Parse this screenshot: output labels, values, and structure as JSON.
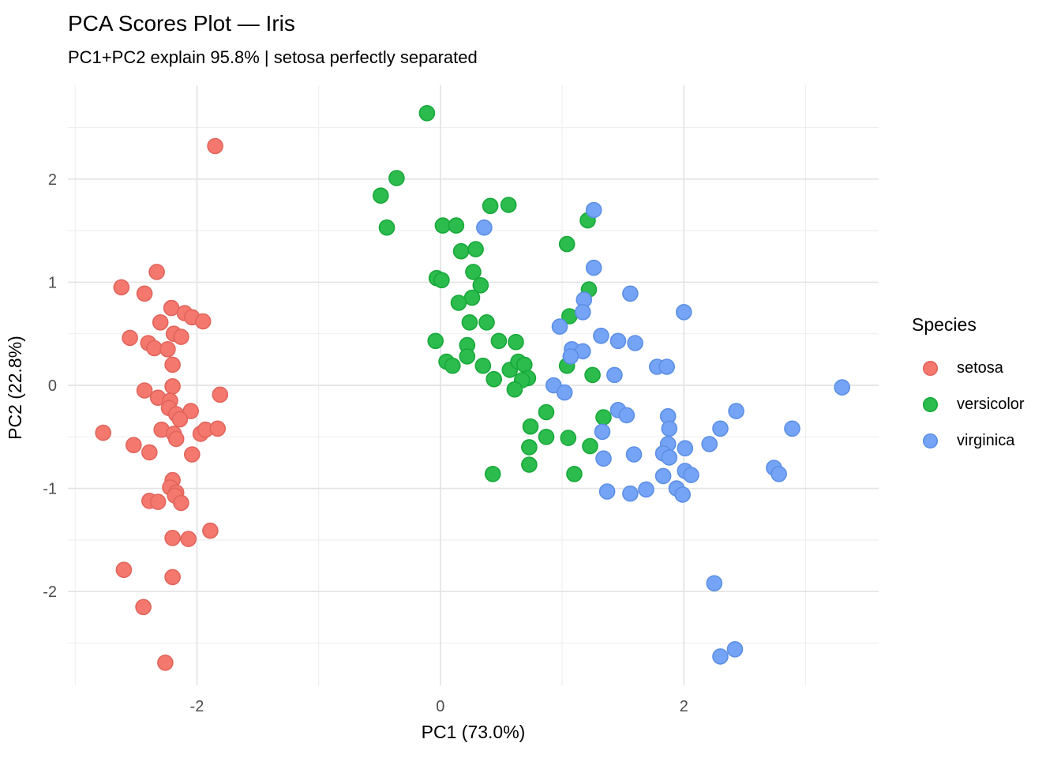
{
  "header": {
    "title": "PCA Scores Plot — Iris",
    "subtitle": "PC1+PC2 explain 95.8% | setosa perfectly separated"
  },
  "chart_data": {
    "type": "scatter",
    "title": "PCA Scores Plot — Iris",
    "subtitle": "PC1+PC2 explain 95.8% | setosa perfectly separated",
    "xlabel": "PC1 (73.0%)",
    "ylabel": "PC2 (22.8%)",
    "xlim": [
      -3.06,
      3.6
    ],
    "ylim": [
      -2.91,
      2.91
    ],
    "x_ticks": [
      -2,
      0,
      2
    ],
    "y_ticks": [
      -2,
      -1,
      0,
      1,
      2
    ],
    "x_minor_ticks": [
      -3,
      -1,
      1,
      3
    ],
    "y_minor_ticks": [
      -2.5,
      -1.5,
      -0.5,
      0.5,
      1.5,
      2.5
    ],
    "grid": true,
    "legend_position": "right",
    "legend_title": "Species",
    "point_radius": 9.5,
    "colors": {
      "major_grid": "#e3e3e3",
      "minor_grid": "#efefef",
      "tick_label": "#4d4d4d"
    },
    "series": [
      {
        "name": "setosa",
        "color": "#F4786E",
        "stroke": "#E2655C",
        "points": [
          [
            -1.85,
            2.32
          ],
          [
            -2.33,
            1.1
          ],
          [
            -2.62,
            0.95
          ],
          [
            -2.43,
            0.89
          ],
          [
            -2.21,
            0.75
          ],
          [
            -2.1,
            0.7
          ],
          [
            -2.04,
            0.66
          ],
          [
            -1.95,
            0.62
          ],
          [
            -2.3,
            0.61
          ],
          [
            -2.55,
            0.46
          ],
          [
            -2.19,
            0.5
          ],
          [
            -2.13,
            0.47
          ],
          [
            -2.4,
            0.41
          ],
          [
            -2.35,
            0.36
          ],
          [
            -2.24,
            0.35
          ],
          [
            -2.2,
            0.2
          ],
          [
            -2.43,
            -0.05
          ],
          [
            -2.2,
            -0.01
          ],
          [
            -2.32,
            -0.12
          ],
          [
            -2.22,
            -0.15
          ],
          [
            -1.81,
            -0.09
          ],
          [
            -2.23,
            -0.22
          ],
          [
            -2.05,
            -0.25
          ],
          [
            -2.17,
            -0.28
          ],
          [
            -2.14,
            -0.33
          ],
          [
            -2.77,
            -0.46
          ],
          [
            -2.29,
            -0.43
          ],
          [
            -2.19,
            -0.47
          ],
          [
            -1.97,
            -0.47
          ],
          [
            -1.93,
            -0.43
          ],
          [
            -1.83,
            -0.42
          ],
          [
            -2.17,
            -0.52
          ],
          [
            -2.52,
            -0.58
          ],
          [
            -2.39,
            -0.65
          ],
          [
            -2.04,
            -0.67
          ],
          [
            -2.2,
            -0.92
          ],
          [
            -2.22,
            -0.99
          ],
          [
            -2.17,
            -1.04
          ],
          [
            -2.39,
            -1.12
          ],
          [
            -2.32,
            -1.13
          ],
          [
            -2.18,
            -1.07
          ],
          [
            -2.13,
            -1.14
          ],
          [
            -2.2,
            -1.48
          ],
          [
            -2.07,
            -1.49
          ],
          [
            -1.89,
            -1.41
          ],
          [
            -2.6,
            -1.79
          ],
          [
            -2.2,
            -1.86
          ],
          [
            -2.44,
            -2.15
          ],
          [
            -2.26,
            -2.69
          ]
        ]
      },
      {
        "name": "versicolor",
        "color": "#2BBC4D",
        "stroke": "#18A83A",
        "points": [
          [
            -0.11,
            2.64
          ],
          [
            -0.36,
            2.01
          ],
          [
            -0.49,
            1.84
          ],
          [
            -0.44,
            1.53
          ],
          [
            0.02,
            1.55
          ],
          [
            0.13,
            1.55
          ],
          [
            0.41,
            1.74
          ],
          [
            0.56,
            1.75
          ],
          [
            0.17,
            1.3
          ],
          [
            0.29,
            1.32
          ],
          [
            0.27,
            1.1
          ],
          [
            -0.03,
            1.04
          ],
          [
            0.01,
            1.02
          ],
          [
            0.33,
            0.97
          ],
          [
            0.26,
            0.85
          ],
          [
            0.15,
            0.8
          ],
          [
            1.21,
            1.6
          ],
          [
            1.04,
            1.37
          ],
          [
            1.22,
            0.93
          ],
          [
            1.06,
            0.67
          ],
          [
            -0.04,
            0.43
          ],
          [
            0.24,
            0.61
          ],
          [
            0.38,
            0.61
          ],
          [
            0.22,
            0.39
          ],
          [
            0.22,
            0.28
          ],
          [
            0.05,
            0.23
          ],
          [
            0.1,
            0.19
          ],
          [
            0.35,
            0.19
          ],
          [
            0.48,
            0.43
          ],
          [
            0.62,
            0.42
          ],
          [
            0.44,
            0.06
          ],
          [
            0.57,
            0.15
          ],
          [
            0.64,
            0.23
          ],
          [
            0.69,
            0.2
          ],
          [
            0.72,
            0.07
          ],
          [
            0.67,
            0.05
          ],
          [
            0.61,
            -0.04
          ],
          [
            1.04,
            0.19
          ],
          [
            1.25,
            0.1
          ],
          [
            0.87,
            -0.26
          ],
          [
            0.74,
            -0.4
          ],
          [
            0.87,
            -0.5
          ],
          [
            1.05,
            -0.51
          ],
          [
            0.73,
            -0.6
          ],
          [
            1.23,
            -0.59
          ],
          [
            0.73,
            -0.77
          ],
          [
            0.43,
            -0.86
          ],
          [
            1.1,
            -0.86
          ],
          [
            1.34,
            -0.31
          ]
        ]
      },
      {
        "name": "virginica",
        "color": "#75A4F6",
        "stroke": "#5C8FE5",
        "points": [
          [
            0.36,
            1.53
          ],
          [
            1.26,
            1.7
          ],
          [
            1.26,
            1.14
          ],
          [
            1.56,
            0.89
          ],
          [
            1.18,
            0.83
          ],
          [
            1.17,
            0.71
          ],
          [
            0.98,
            0.57
          ],
          [
            1.32,
            0.48
          ],
          [
            1.46,
            0.43
          ],
          [
            1.08,
            0.35
          ],
          [
            1.17,
            0.33
          ],
          [
            1.07,
            0.28
          ],
          [
            1.43,
            0.1
          ],
          [
            0.93,
            0.0
          ],
          [
            1.02,
            -0.07
          ],
          [
            1.46,
            -0.24
          ],
          [
            1.53,
            -0.29
          ],
          [
            1.33,
            -0.45
          ],
          [
            1.34,
            -0.71
          ],
          [
            1.37,
            -1.03
          ],
          [
            2.0,
            0.71
          ],
          [
            1.6,
            0.41
          ],
          [
            1.78,
            0.18
          ],
          [
            1.86,
            0.18
          ],
          [
            3.3,
            -0.02
          ],
          [
            1.87,
            -0.3
          ],
          [
            1.88,
            -0.42
          ],
          [
            2.43,
            -0.25
          ],
          [
            2.3,
            -0.42
          ],
          [
            2.89,
            -0.42
          ],
          [
            2.21,
            -0.57
          ],
          [
            1.87,
            -0.57
          ],
          [
            2.01,
            -0.61
          ],
          [
            1.59,
            -0.67
          ],
          [
            1.83,
            -0.66
          ],
          [
            1.88,
            -0.7
          ],
          [
            1.83,
            -0.88
          ],
          [
            2.01,
            -0.83
          ],
          [
            2.06,
            -0.87
          ],
          [
            2.74,
            -0.8
          ],
          [
            2.78,
            -0.86
          ],
          [
            1.69,
            -1.01
          ],
          [
            1.94,
            -1.0
          ],
          [
            1.99,
            -1.06
          ],
          [
            1.56,
            -1.05
          ],
          [
            2.25,
            -1.92
          ],
          [
            2.3,
            -2.63
          ],
          [
            2.42,
            -2.56
          ]
        ]
      }
    ]
  }
}
